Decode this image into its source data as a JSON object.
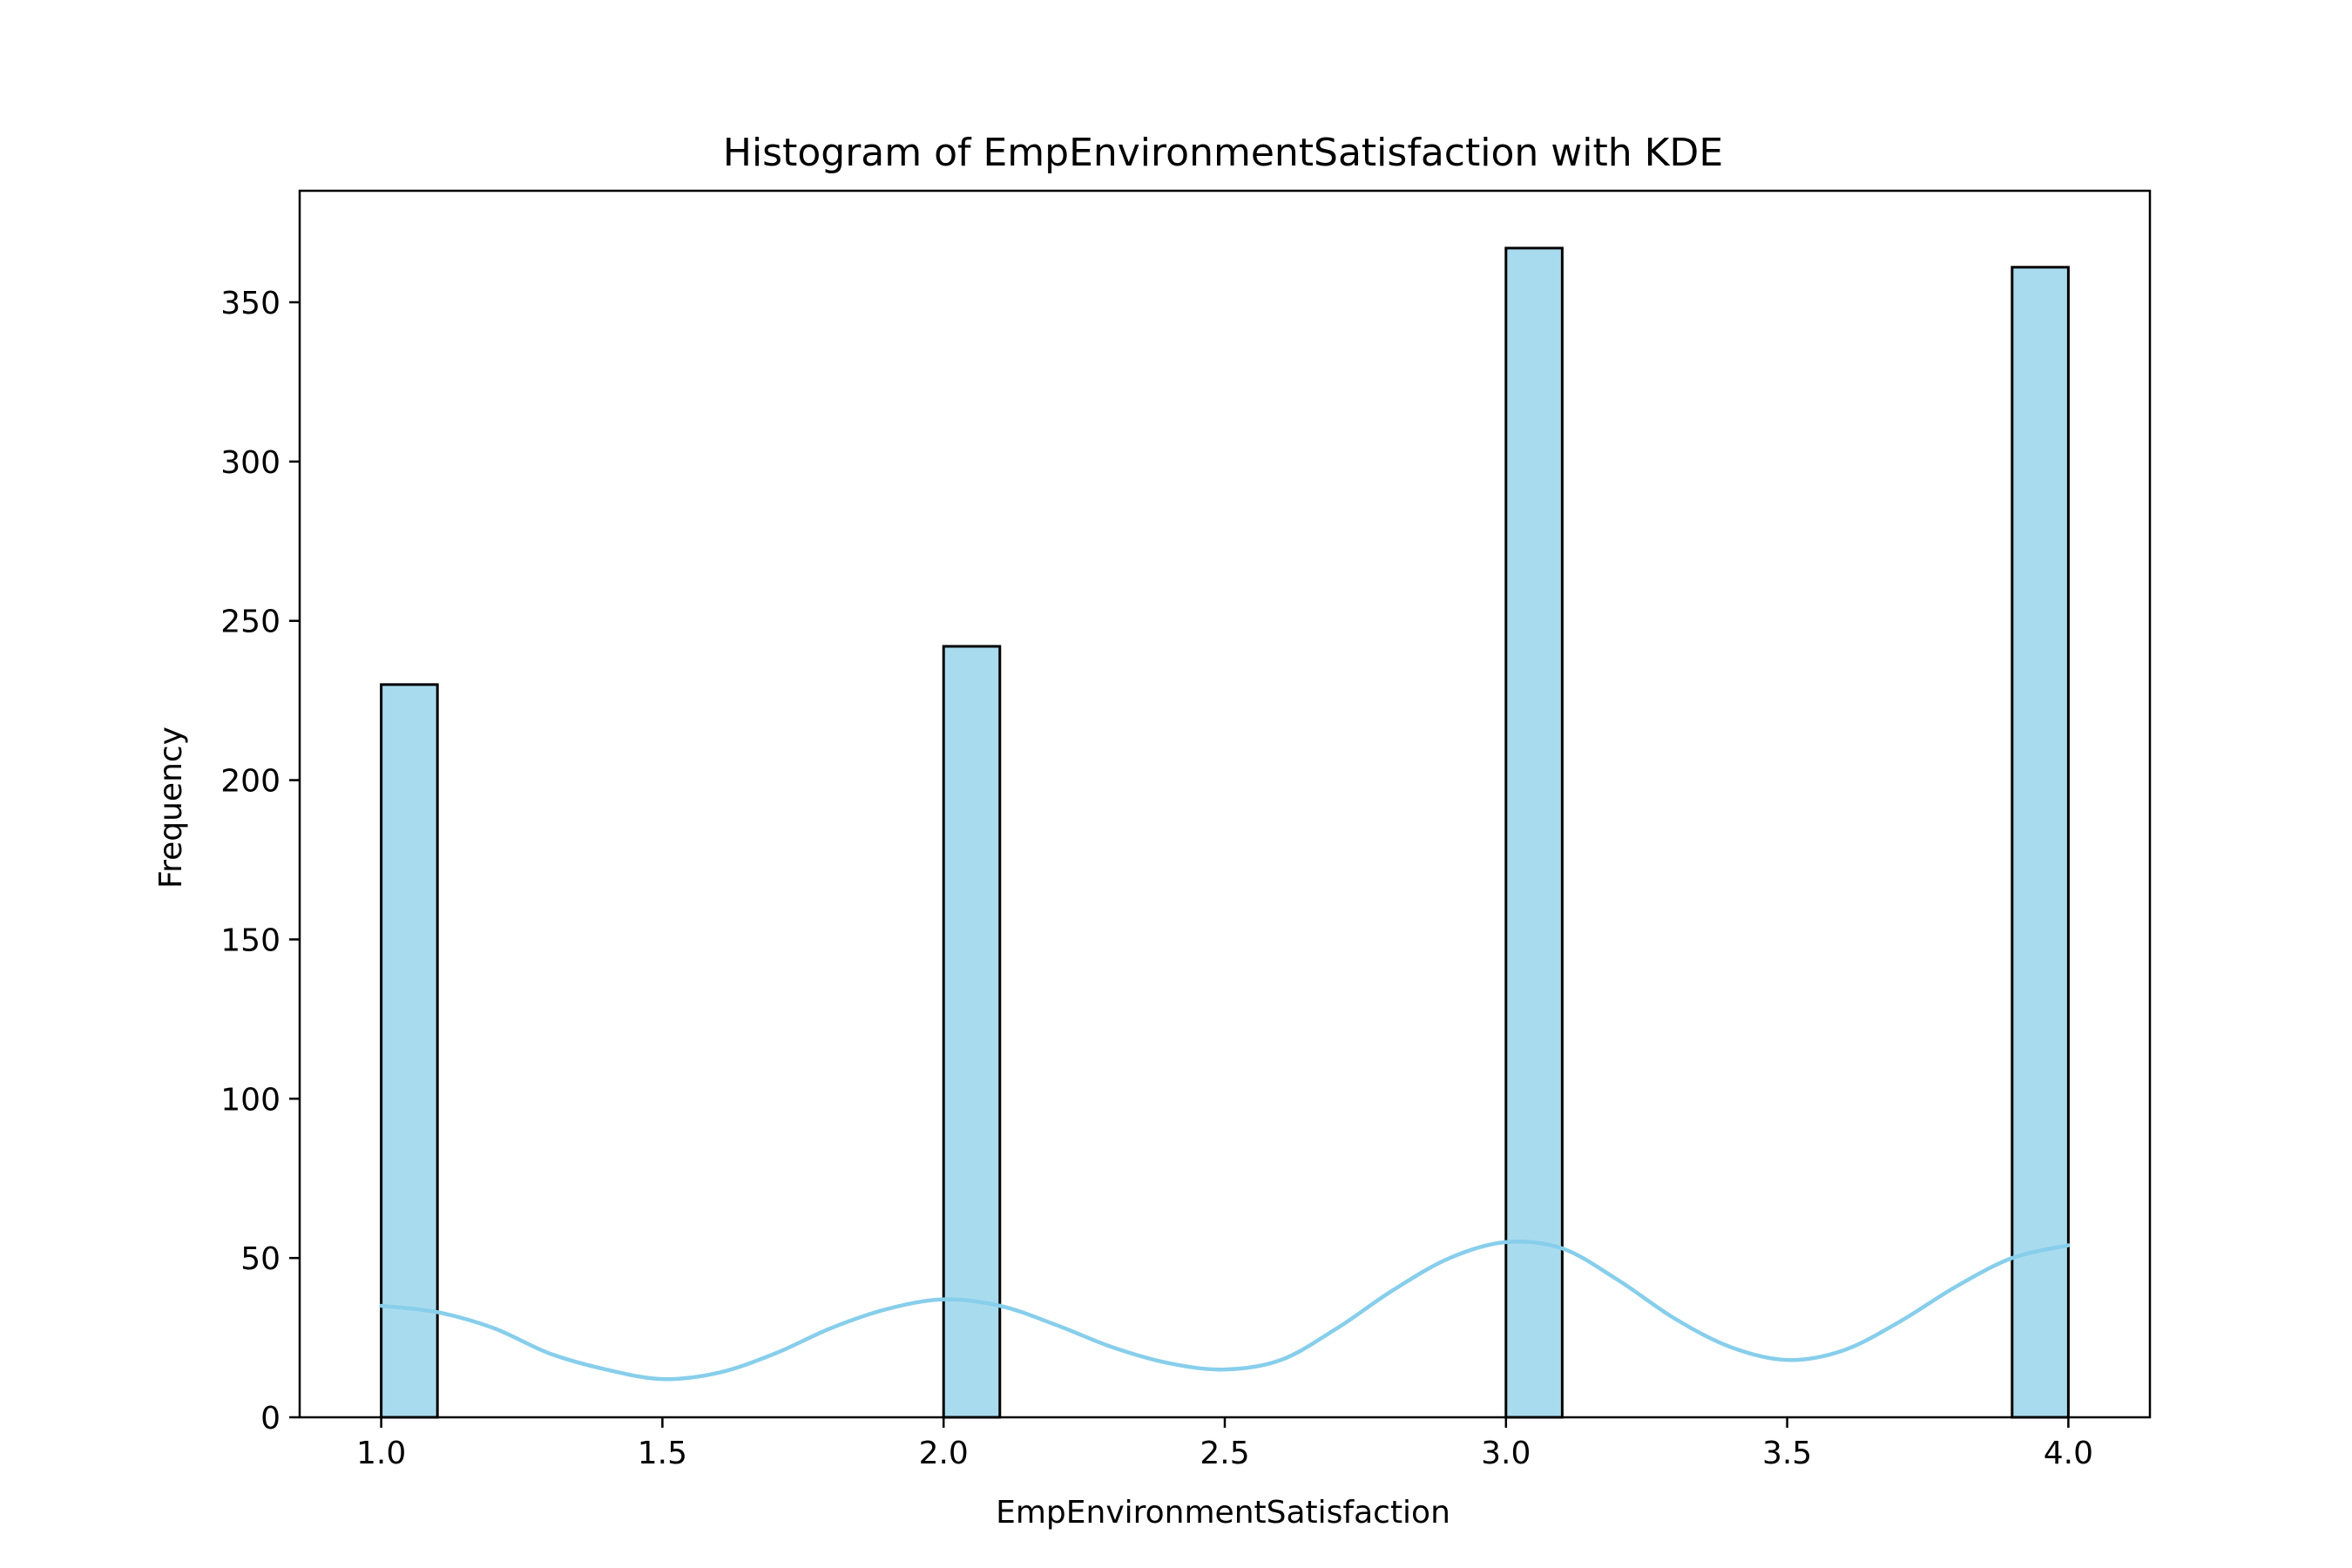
{
  "chart_data": {
    "type": "bar",
    "title": "Histogram of EmpEnvironmentSatisfaction with KDE",
    "xlabel": "EmpEnvironmentSatisfaction",
    "ylabel": "Frequency",
    "xlim": [
      0.855,
      4.145
    ],
    "ylim": [
      0,
      385
    ],
    "xticks": [
      1.0,
      1.5,
      2.0,
      2.5,
      3.0,
      3.5,
      4.0
    ],
    "xtick_labels": [
      "1.0",
      "1.5",
      "2.0",
      "2.5",
      "3.0",
      "3.5",
      "4.0"
    ],
    "yticks": [
      0,
      50,
      100,
      150,
      200,
      250,
      300,
      350
    ],
    "ytick_labels": [
      "0",
      "50",
      "100",
      "150",
      "200",
      "250",
      "300",
      "350"
    ],
    "bin_width": 0.1,
    "bars": [
      {
        "x_start": 1.0,
        "x_end": 1.1,
        "value": 230
      },
      {
        "x_start": 1.9,
        "x_end": 2.0,
        "value": 0
      },
      {
        "x_start": 2.0,
        "x_end": 2.1,
        "value": 242
      },
      {
        "x_start": 3.0,
        "x_end": 3.1,
        "value": 367
      },
      {
        "x_start": 3.9,
        "x_end": 4.0,
        "value": 361
      }
    ],
    "kde": {
      "x": [
        1.0,
        1.1,
        1.2,
        1.3,
        1.4,
        1.5,
        1.6,
        1.7,
        1.8,
        1.9,
        2.0,
        2.1,
        2.2,
        2.3,
        2.4,
        2.5,
        2.6,
        2.7,
        2.8,
        2.9,
        3.0,
        3.1,
        3.2,
        3.3,
        3.4,
        3.5,
        3.6,
        3.7,
        3.8,
        3.9,
        4.0
      ],
      "y": [
        35,
        33,
        28,
        20,
        15,
        12,
        14,
        20,
        28,
        34,
        37,
        35,
        29,
        22,
        17,
        15,
        18,
        28,
        40,
        50,
        55,
        53,
        43,
        31,
        22,
        18,
        21,
        30,
        41,
        50,
        54
      ]
    },
    "grid": false,
    "colors": {
      "bar_fill": "#a9dbee",
      "bar_edge": "#000000",
      "kde_line": "#87ceeb",
      "axes": "#000000"
    }
  }
}
